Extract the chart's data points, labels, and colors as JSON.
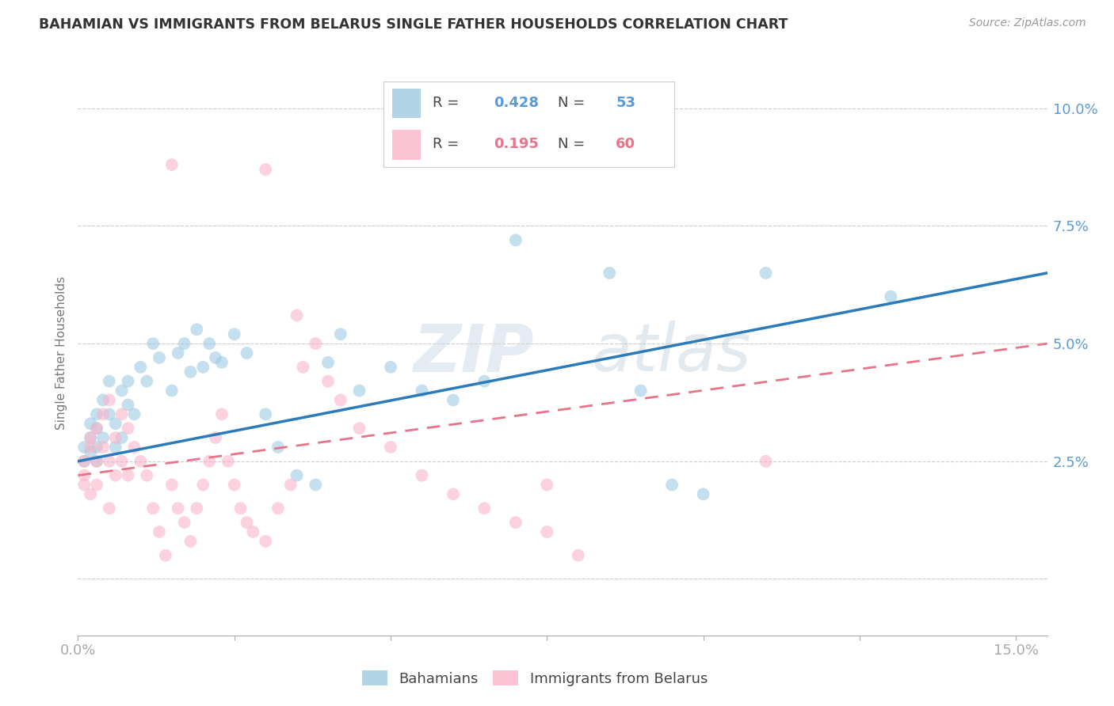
{
  "title": "BAHAMIAN VS IMMIGRANTS FROM BELARUS SINGLE FATHER HOUSEHOLDS CORRELATION CHART",
  "source": "Source: ZipAtlas.com",
  "tick_color": "#5b9bd5",
  "ylabel": "Single Father Households",
  "xlim": [
    0.0,
    0.155
  ],
  "ylim": [
    -0.012,
    0.108
  ],
  "r_bahamian": "0.428",
  "n_bahamian": "53",
  "r_belarus": "0.195",
  "n_belarus": "60",
  "color_blue": "#9ecae1",
  "color_pink": "#fbb4c9",
  "line_blue": "#2b7bba",
  "line_pink": "#e8748a",
  "watermark_zip": "ZIP",
  "watermark_atlas": "atlas",
  "legend_blue_text_color": "#5b9bd5",
  "legend_pink_text_color": "#e8748a",
  "bah_x": [
    0.001,
    0.001,
    0.002,
    0.002,
    0.002,
    0.003,
    0.003,
    0.003,
    0.003,
    0.004,
    0.004,
    0.005,
    0.005,
    0.006,
    0.006,
    0.007,
    0.007,
    0.008,
    0.008,
    0.009,
    0.01,
    0.011,
    0.012,
    0.013,
    0.015,
    0.016,
    0.017,
    0.018,
    0.019,
    0.02,
    0.021,
    0.022,
    0.023,
    0.025,
    0.027,
    0.03,
    0.032,
    0.035,
    0.038,
    0.04,
    0.042,
    0.045,
    0.05,
    0.055,
    0.06,
    0.065,
    0.07,
    0.085,
    0.09,
    0.095,
    0.1,
    0.11,
    0.13
  ],
  "bah_y": [
    0.025,
    0.028,
    0.03,
    0.033,
    0.027,
    0.032,
    0.025,
    0.028,
    0.035,
    0.03,
    0.038,
    0.035,
    0.042,
    0.028,
    0.033,
    0.04,
    0.03,
    0.037,
    0.042,
    0.035,
    0.045,
    0.042,
    0.05,
    0.047,
    0.04,
    0.048,
    0.05,
    0.044,
    0.053,
    0.045,
    0.05,
    0.047,
    0.046,
    0.052,
    0.048,
    0.035,
    0.028,
    0.022,
    0.02,
    0.046,
    0.052,
    0.04,
    0.045,
    0.04,
    0.038,
    0.042,
    0.072,
    0.065,
    0.04,
    0.02,
    0.018,
    0.065,
    0.06
  ],
  "bel_x": [
    0.001,
    0.001,
    0.001,
    0.002,
    0.002,
    0.002,
    0.003,
    0.003,
    0.003,
    0.004,
    0.004,
    0.005,
    0.005,
    0.005,
    0.006,
    0.006,
    0.007,
    0.007,
    0.008,
    0.008,
    0.009,
    0.01,
    0.011,
    0.012,
    0.013,
    0.014,
    0.015,
    0.016,
    0.017,
    0.018,
    0.019,
    0.02,
    0.021,
    0.022,
    0.023,
    0.024,
    0.025,
    0.026,
    0.027,
    0.028,
    0.03,
    0.032,
    0.034,
    0.036,
    0.038,
    0.04,
    0.042,
    0.045,
    0.05,
    0.055,
    0.06,
    0.065,
    0.07,
    0.075,
    0.08,
    0.11,
    0.03,
    0.015,
    0.035,
    0.075
  ],
  "bel_y": [
    0.02,
    0.025,
    0.022,
    0.018,
    0.028,
    0.03,
    0.025,
    0.032,
    0.02,
    0.028,
    0.035,
    0.038,
    0.025,
    0.015,
    0.03,
    0.022,
    0.025,
    0.035,
    0.032,
    0.022,
    0.028,
    0.025,
    0.022,
    0.015,
    0.01,
    0.005,
    0.02,
    0.015,
    0.012,
    0.008,
    0.015,
    0.02,
    0.025,
    0.03,
    0.035,
    0.025,
    0.02,
    0.015,
    0.012,
    0.01,
    0.008,
    0.015,
    0.02,
    0.045,
    0.05,
    0.042,
    0.038,
    0.032,
    0.028,
    0.022,
    0.018,
    0.015,
    0.012,
    0.01,
    0.005,
    0.025,
    0.087,
    0.088,
    0.056,
    0.02
  ]
}
